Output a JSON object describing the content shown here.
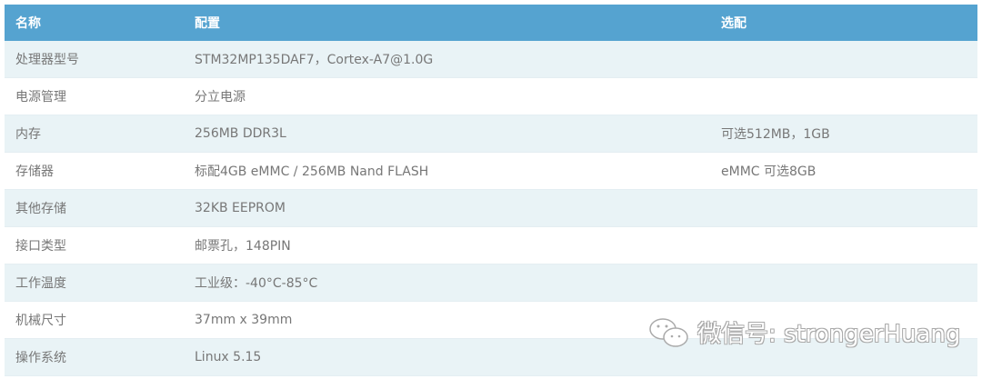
{
  "table": {
    "headers": [
      "名称",
      "配置",
      "选配"
    ],
    "rows": [
      [
        "处理器型号",
        "STM32MP135DAF7，Cortex-A7@1.0G",
        ""
      ],
      [
        "电源管理",
        "分立电源",
        ""
      ],
      [
        "内存",
        "256MB DDR3L",
        "可选512MB，1GB"
      ],
      [
        "存储器",
        "标配4GB eMMC / 256MB Nand FLASH",
        "eMMC 可选8GB"
      ],
      [
        "其他存储",
        "32KB EEPROM",
        ""
      ],
      [
        "接口类型",
        "邮票孔，148PIN",
        ""
      ],
      [
        "工作温度",
        "工业级：-40°C-85°C",
        ""
      ],
      [
        "机械尺寸",
        "37mm x 39mm",
        ""
      ],
      [
        "操作系统",
        "Linux 5.15",
        ""
      ]
    ]
  },
  "watermark": {
    "text": "微信号: strongerHuang",
    "icon": "wechat-icon"
  },
  "colors": {
    "header": "#55a3d0",
    "stripe": "#e9f3f6"
  }
}
